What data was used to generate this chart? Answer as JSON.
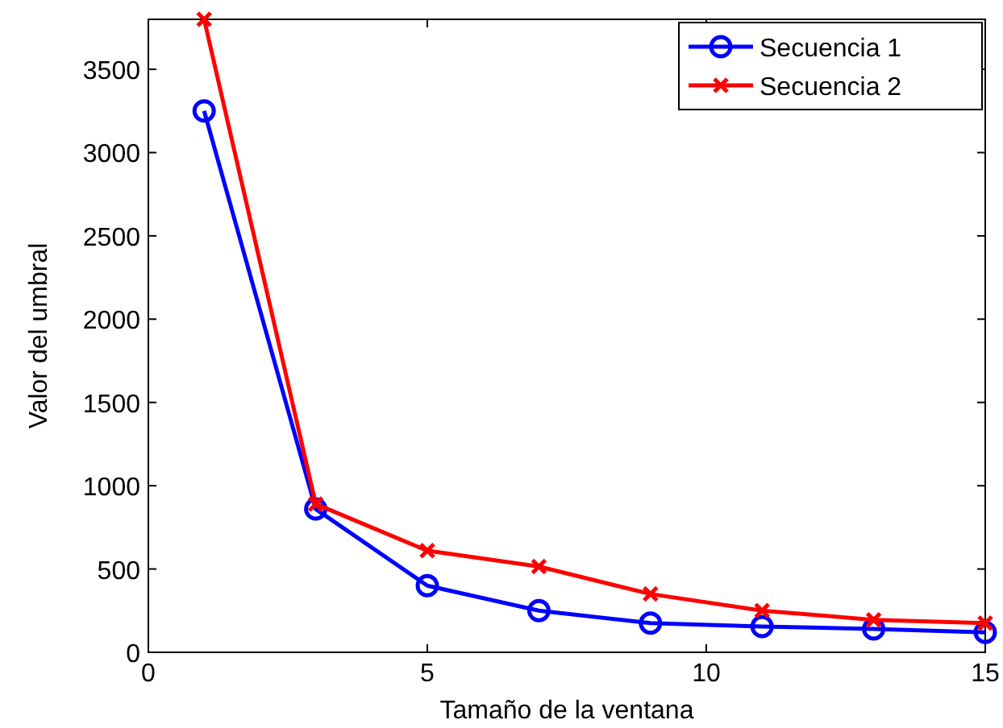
{
  "chart_data": {
    "type": "line",
    "xlabel": "Tamaño de la ventana",
    "ylabel": "Valor del umbral",
    "x": [
      1,
      3,
      5,
      7,
      9,
      11,
      13,
      15
    ],
    "series": [
      {
        "name": "Secuencia 1",
        "color": "#0000ff",
        "marker": "circle",
        "values": [
          3250,
          860,
          400,
          250,
          175,
          155,
          140,
          120
        ]
      },
      {
        "name": "Secuencia 2",
        "color": "#ff0000",
        "marker": "cross",
        "values": [
          3800,
          890,
          610,
          515,
          350,
          250,
          195,
          175
        ]
      }
    ],
    "xlim": [
      0,
      15
    ],
    "xticks": [
      0,
      5,
      10,
      15
    ],
    "ylim": [
      0,
      3800
    ],
    "yticks": [
      0,
      500,
      1000,
      1500,
      2000,
      2500,
      3000,
      3500
    ],
    "grid": false,
    "legend": "top right",
    "line_style": "solid"
  }
}
